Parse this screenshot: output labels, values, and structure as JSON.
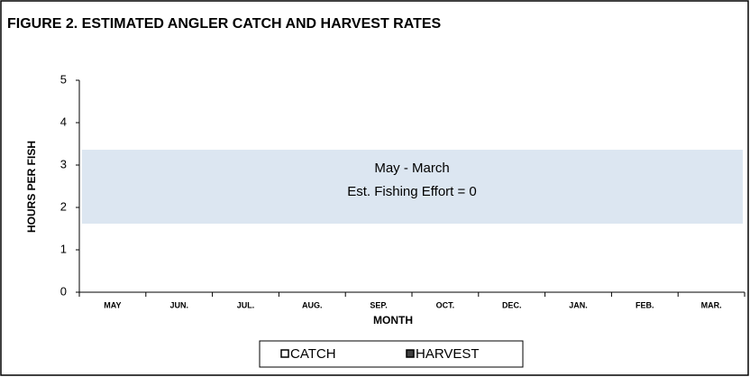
{
  "chart_data": {
    "type": "bar",
    "title": "FIGURE 2.  ESTIMATED ANGLER CATCH AND HARVEST RATES",
    "y_label": "HOURS PER FISH",
    "x_label": "MONTH",
    "categories": [
      "MAY",
      "JUN.",
      "JUL.",
      "AUG.",
      "SEP.",
      "OCT.",
      "DEC.",
      "JAN.",
      "FEB.",
      "MAR."
    ],
    "series": [
      {
        "name": "CATCH",
        "color": "#ffffff",
        "values": [
          null,
          null,
          null,
          null,
          null,
          null,
          null,
          null,
          null,
          null
        ]
      },
      {
        "name": "HARVEST",
        "color": "#404040",
        "values": [
          null,
          null,
          null,
          null,
          null,
          null,
          null,
          null,
          null,
          null
        ]
      }
    ],
    "ylim": [
      0,
      5
    ],
    "yticks": [
      0,
      1,
      2,
      3,
      4,
      5
    ],
    "annotation": [
      "May - March",
      "Est. Fishing Effort = 0"
    ],
    "legend": "bottom"
  }
}
